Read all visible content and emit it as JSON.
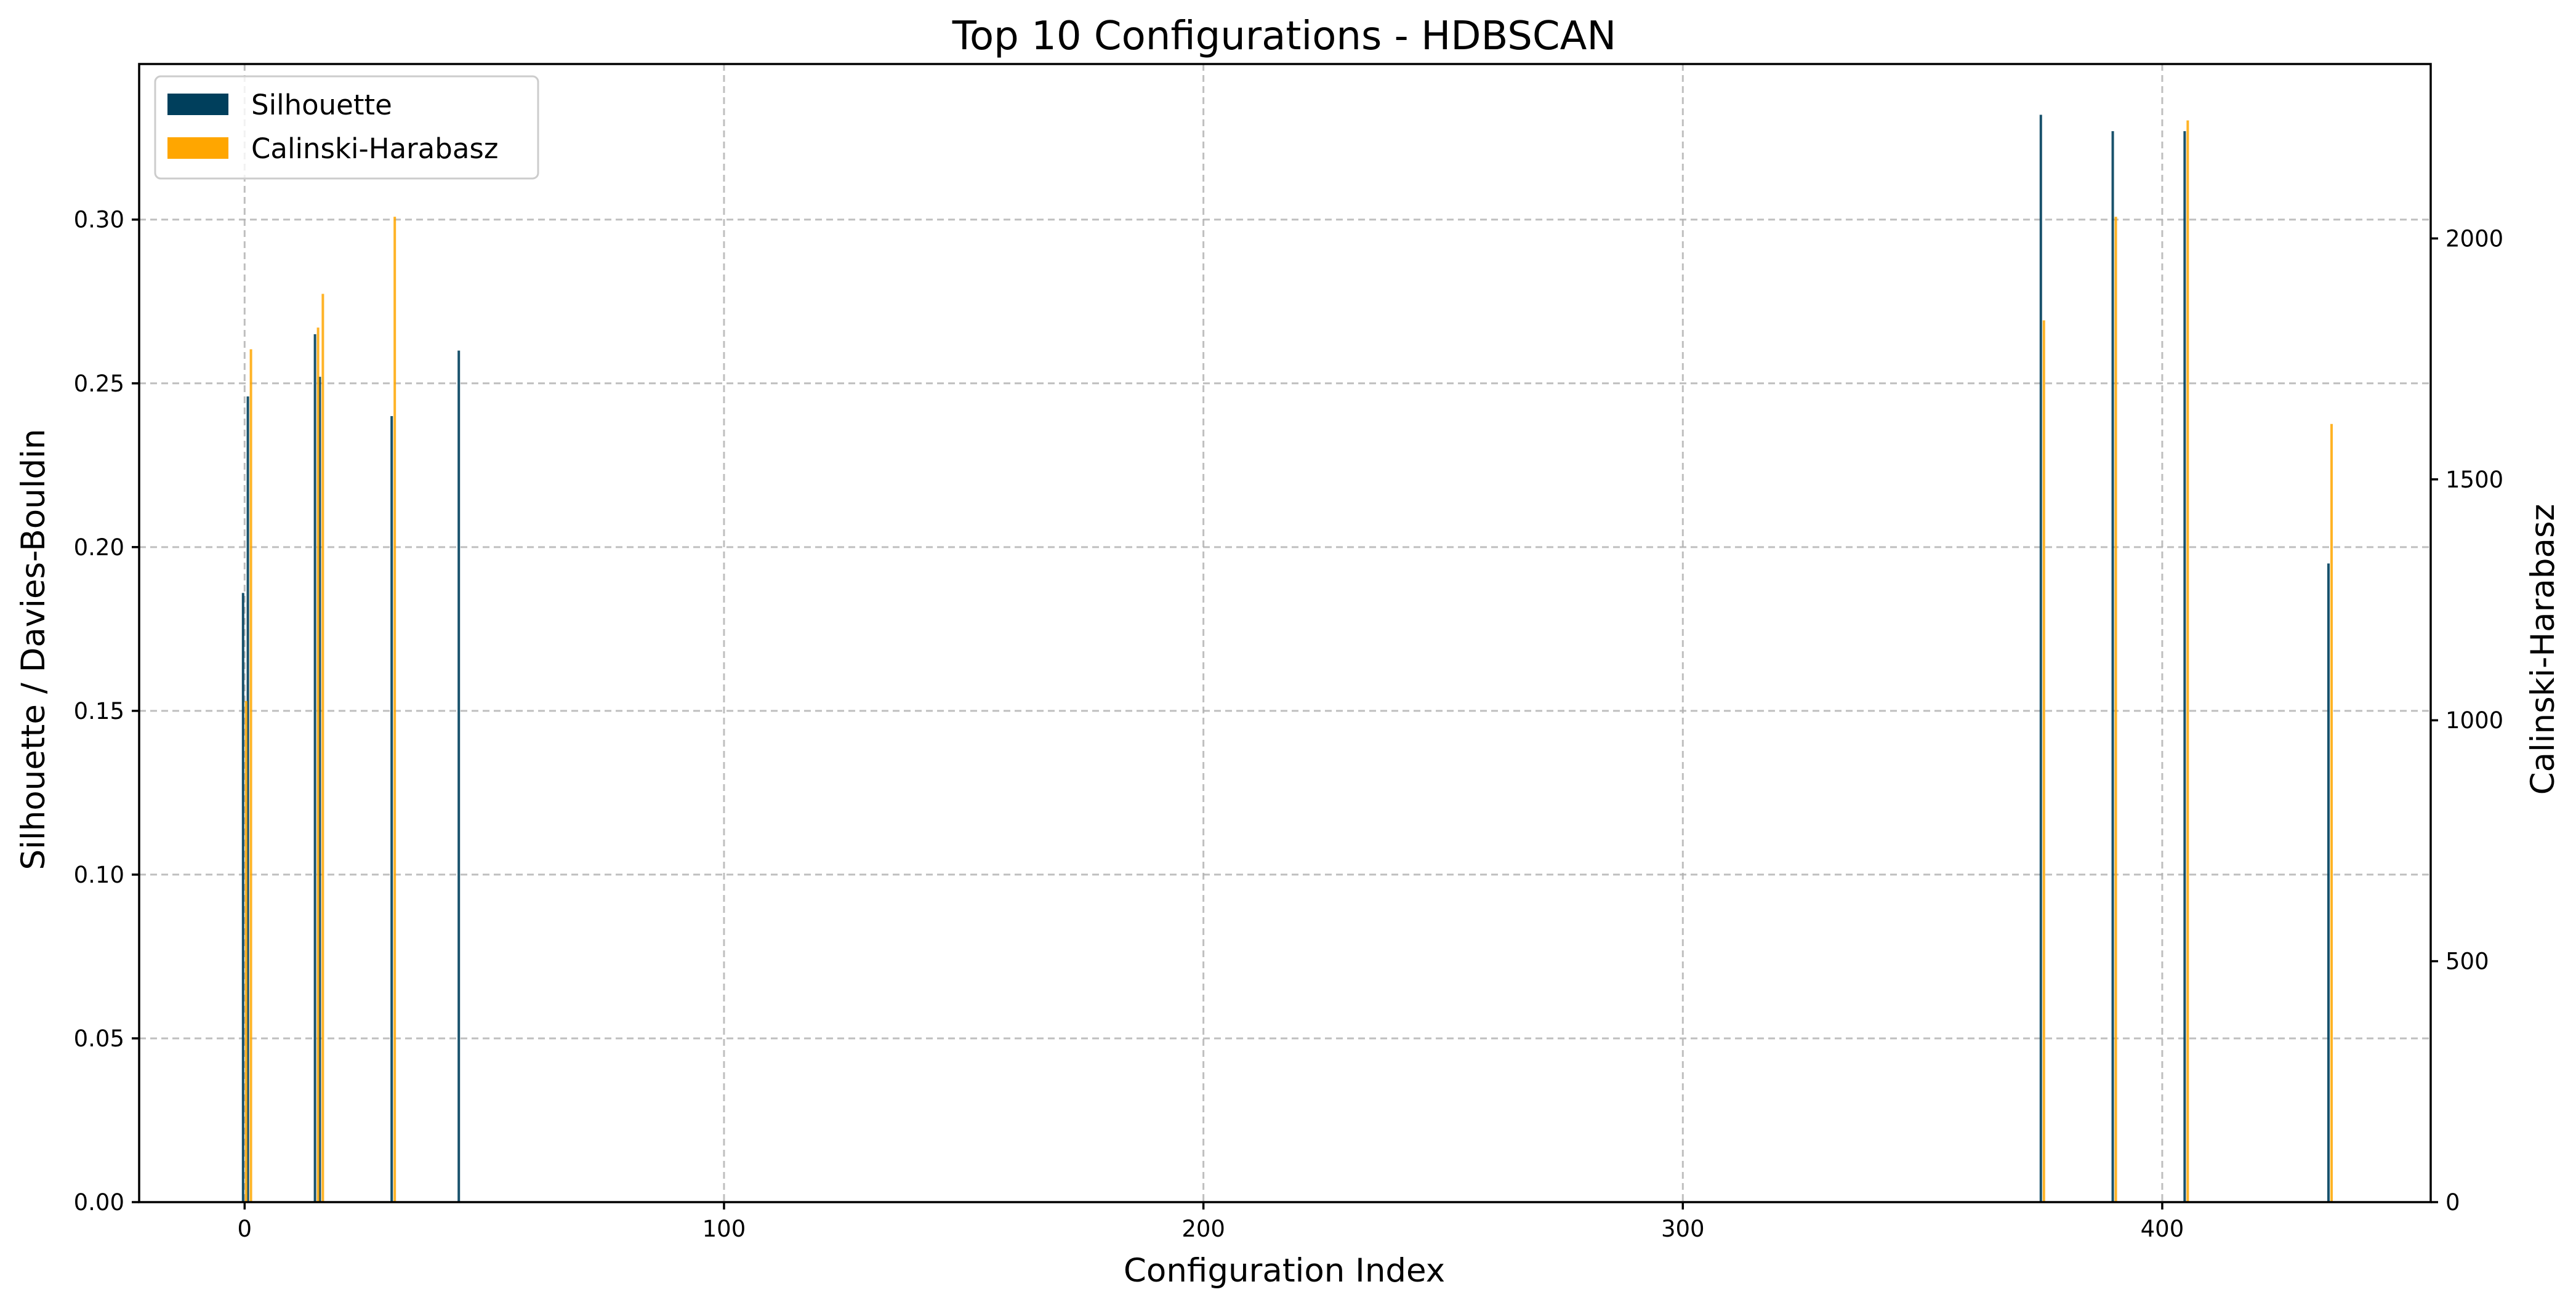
{
  "chart_data": {
    "type": "bar",
    "title": "Top 10 Configurations - HDBSCAN",
    "xlabel": "Configuration Index",
    "ylabel": "Silhouette / Davies-Bouldin",
    "ylabel_right": "Calinski-Harabasz",
    "xlim": [
      -22,
      456
    ],
    "ylim": [
      0,
      0.3475
    ],
    "ylim_right": [
      0,
      2362
    ],
    "x_ticks": [
      0,
      100,
      200,
      300,
      400
    ],
    "y_ticks": [
      0.0,
      0.05,
      0.1,
      0.15,
      0.2,
      0.25,
      0.3
    ],
    "y_tick_labels": [
      "0.00",
      "0.05",
      "0.10",
      "0.15",
      "0.20",
      "0.25",
      "0.30"
    ],
    "y_right_ticks": [
      0,
      500,
      1000,
      1500,
      2000
    ],
    "grid": true,
    "legend_position": "top-left",
    "series": [
      {
        "name": "Silhouette",
        "axis": "left",
        "color": "#003f5c",
        "x": [
          0,
          1,
          15,
          16,
          31,
          45,
          375,
          390,
          405,
          435
        ],
        "values": [
          0.186,
          0.246,
          0.265,
          0.252,
          0.24,
          0.26,
          0.332,
          0.327,
          0.327,
          0.195
        ]
      },
      {
        "name": "Calinski-Harabasz",
        "axis": "right",
        "color": "#ffa600",
        "x": [
          0,
          1,
          15,
          16,
          31,
          375,
          390,
          405,
          435
        ],
        "values": [
          1040,
          1770,
          1815,
          1885,
          2045,
          1830,
          2045,
          2245,
          1615
        ]
      }
    ]
  }
}
